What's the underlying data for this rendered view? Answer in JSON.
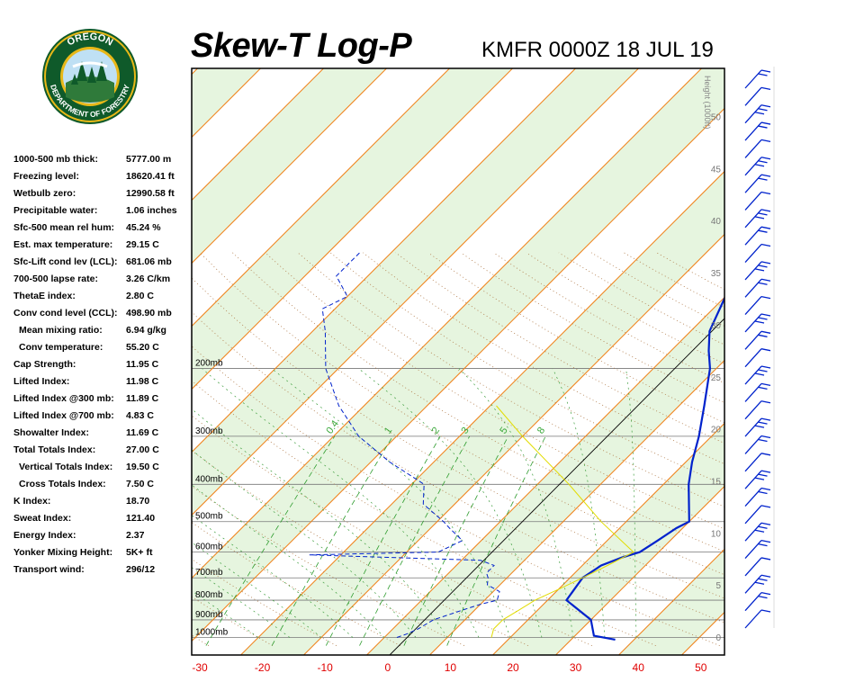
{
  "title": "Skew-T Log-P",
  "station_time": "KMFR 0000Z 18 JUL 19",
  "logo": {
    "top_text": "OREGON",
    "bottom_text": "DEPARTMENT OF FORESTRY",
    "colors": {
      "ring": "#0f5a2a",
      "gold": "#e8b818",
      "sky": "#bfe0f4"
    }
  },
  "stats": [
    {
      "label": "1000-500 mb thick:",
      "value": "5777.00 m"
    },
    {
      "label": "Freezing level:",
      "value": "18620.41 ft"
    },
    {
      "label": "Wetbulb zero:",
      "value": "12990.58 ft"
    },
    {
      "label": "Precipitable water:",
      "value": "1.06 inches"
    },
    {
      "label": "Sfc-500 mean rel hum:",
      "value": "45.24 %"
    },
    {
      "label": "Est. max temperature:",
      "value": "29.15 C"
    },
    {
      "label": "Sfc-Lift cond lev (LCL):",
      "value": "681.06 mb"
    },
    {
      "label": "700-500 lapse rate:",
      "value": "3.26 C/km"
    },
    {
      "label": "ThetaE index:",
      "value": "2.80 C"
    },
    {
      "label": "Conv cond level (CCL):",
      "value": "498.90 mb"
    },
    {
      "label": "Mean mixing ratio:",
      "value": "6.94 g/kg",
      "indent": true
    },
    {
      "label": "Conv temperature:",
      "value": "55.20 C",
      "indent": true
    },
    {
      "label": "Cap Strength:",
      "value": "11.95 C"
    },
    {
      "label": "Lifted Index:",
      "value": "11.98 C"
    },
    {
      "label": "Lifted Index @300 mb:",
      "value": "11.89 C"
    },
    {
      "label": "Lifted Index @700 mb:",
      "value": "4.83 C"
    },
    {
      "label": "Showalter Index:",
      "value": "11.69 C"
    },
    {
      "label": "Total Totals Index:",
      "value": "27.00 C"
    },
    {
      "label": "Vertical Totals Index:",
      "value": "19.50 C",
      "indent": true
    },
    {
      "label": "Cross Totals Index:",
      "value": "7.50 C",
      "indent": true
    },
    {
      "label": "K Index:",
      "value": "18.70"
    },
    {
      "label": "Sweat Index:",
      "value": "121.40"
    },
    {
      "label": "Energy Index:",
      "value": "2.37"
    },
    {
      "label": "Yonker Mixing Height:",
      "value": "5K+ ft"
    },
    {
      "label": "Transport wind:",
      "value": "296/12"
    }
  ],
  "chart_data": {
    "type": "line",
    "subtype": "skew-t log-p",
    "x_ticks": [
      -30,
      -20,
      -10,
      0,
      10,
      20,
      30,
      40,
      50
    ],
    "pressure_levels": [
      {
        "p": 200,
        "label": "200mb"
      },
      {
        "p": 300,
        "label": "300mb"
      },
      {
        "p": 400,
        "label": "400mb"
      },
      {
        "p": 500,
        "label": "500mb"
      },
      {
        "p": 600,
        "label": "600mb"
      },
      {
        "p": 700,
        "label": "700mb"
      },
      {
        "p": 800,
        "label": "800mb"
      },
      {
        "p": 900,
        "label": "900mb"
      },
      {
        "p": 1000,
        "label": "1000mb"
      }
    ],
    "height_axis": {
      "label": "Height (1000ft)",
      "ticks": [
        0,
        5,
        10,
        15,
        20,
        25,
        30,
        35,
        40,
        45,
        50
      ]
    },
    "mixing_ratio_labels": [
      "0.4",
      "1",
      "2",
      "3",
      "5",
      "8"
    ],
    "series": [
      {
        "color": "#0022cc",
        "style": "solid",
        "points": [
          [
            1013,
            37
          ],
          [
            990,
            33
          ],
          [
            900,
            30
          ],
          [
            800,
            23
          ],
          [
            700,
            22
          ],
          [
            650,
            23
          ],
          [
            620,
            25
          ],
          [
            600,
            27
          ],
          [
            560,
            28
          ],
          [
            520,
            29
          ],
          [
            500,
            30
          ],
          [
            400,
            24
          ],
          [
            350,
            21
          ],
          [
            300,
            18
          ],
          [
            250,
            14
          ],
          [
            200,
            9
          ],
          [
            180,
            6
          ],
          [
            160,
            3
          ],
          [
            130,
            0
          ],
          [
            120,
            4
          ],
          [
            110,
            7
          ],
          [
            100,
            10
          ]
        ]
      },
      {
        "color": "#0022cc",
        "style": "dashed",
        "points": [
          [
            1000,
            2
          ],
          [
            980,
            3
          ],
          [
            950,
            4
          ],
          [
            900,
            5
          ],
          [
            850,
            8
          ],
          [
            820,
            10
          ],
          [
            800,
            12
          ],
          [
            760,
            11
          ],
          [
            730,
            8
          ],
          [
            700,
            7
          ],
          [
            680,
            6
          ],
          [
            650,
            6
          ],
          [
            630,
            3
          ],
          [
            610,
            -25
          ],
          [
            600,
            -5
          ],
          [
            560,
            -3
          ],
          [
            520,
            -7
          ],
          [
            500,
            -9
          ],
          [
            450,
            -15
          ],
          [
            400,
            -18
          ],
          [
            350,
            -27
          ],
          [
            300,
            -36
          ],
          [
            250,
            -44
          ],
          [
            200,
            -52
          ],
          [
            160,
            -58
          ],
          [
            140,
            -62
          ],
          [
            130,
            -60
          ],
          [
            115,
            -65
          ],
          [
            100,
            -65
          ]
        ]
      },
      {
        "color": "#e2dc00",
        "style": "solid",
        "points": [
          [
            1000,
            17
          ],
          [
            950,
            16
          ],
          [
            900,
            16
          ],
          [
            850,
            17
          ],
          [
            800,
            18
          ],
          [
            750,
            20
          ],
          [
            700,
            22
          ],
          [
            650,
            24
          ],
          [
            600,
            26
          ],
          [
            500,
            16
          ],
          [
            400,
            5
          ],
          [
            300,
            -10
          ],
          [
            250,
            -19
          ]
        ]
      }
    ],
    "wind_barbs": {
      "color": "#0022cc",
      "count": 32
    }
  }
}
